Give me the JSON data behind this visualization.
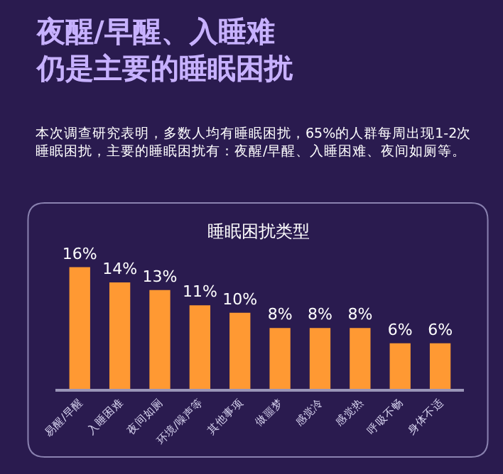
{
  "chart_data": {
    "type": "bar",
    "title": "夜醒/早醒、入睡难仍是主要的睡眠困扰",
    "subtitle": "本次调查研究表明，多数人均有睡眠困扰，65%的人群每周出现1-2次睡眠困扰，主要的睡眠困扰有：夜醒/早醒、入睡困难、夜间如厕等。",
    "annotations": [
      "睡眠困扰类型"
    ],
    "categories": [
      "易醒/早醒",
      "入睡困难",
      "夜间如厕",
      "环境/噪声等",
      "其他事项",
      "做噩梦",
      "感觉冷",
      "感觉热",
      "呼吸不畅",
      "身体不适"
    ],
    "values": [
      16,
      14,
      13,
      11,
      10,
      8,
      8,
      8,
      6,
      6
    ],
    "value_labels": [
      "16%",
      "14%",
      "13%",
      "11%",
      "10%",
      "8%",
      "8%",
      "8%",
      "6%",
      "6%"
    ],
    "color": "#ff9933",
    "grid": false,
    "tick_labels": "x"
  }
}
